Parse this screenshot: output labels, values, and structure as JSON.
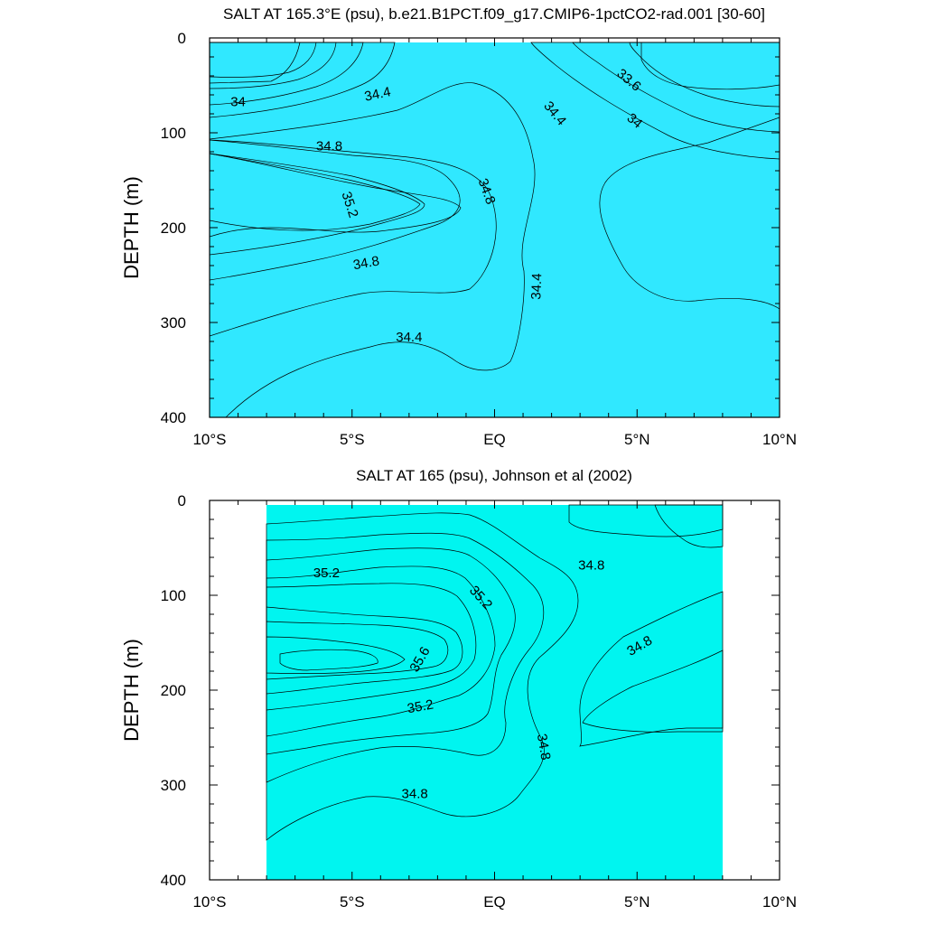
{
  "chart_data": [
    {
      "type": "contour",
      "title": "SALT AT 165.3°E (psu), b.e21.B1PCT.f09_g17.CMIP6-1pctCO2-rad.001 [30-60]",
      "ylabel": "DEPTH (m)",
      "xlim": [
        -10,
        10
      ],
      "ylim": [
        400,
        0
      ],
      "x_ticks": [
        {
          "v": -10,
          "label": "10°S"
        },
        {
          "v": -5,
          "label": "5°S"
        },
        {
          "v": 0,
          "label": "EQ"
        },
        {
          "v": 5,
          "label": "5°N"
        },
        {
          "v": 10,
          "label": "10°N"
        }
      ],
      "y_ticks": [
        {
          "v": 0,
          "label": "0"
        },
        {
          "v": 100,
          "label": "100"
        },
        {
          "v": 200,
          "label": "200"
        },
        {
          "v": 300,
          "label": "300"
        },
        {
          "v": 400,
          "label": "400"
        }
      ],
      "data_extent": {
        "lon": [
          -10,
          10
        ],
        "depth": [
          5,
          400
        ]
      },
      "levels": [
        {
          "min": 33.4,
          "color": "#1e64ff"
        },
        {
          "min": 33.6,
          "color": "#0096ff"
        },
        {
          "min": 33.8,
          "color": "#00b4ff"
        },
        {
          "min": 34.0,
          "color": "#00d2ff"
        },
        {
          "min": 34.2,
          "color": "#30e8ff"
        },
        {
          "min": 34.4,
          "color": "#00f5f0"
        },
        {
          "min": 34.6,
          "color": "#00f5c0"
        },
        {
          "min": 34.8,
          "color": "#00f59a"
        },
        {
          "min": 35.0,
          "color": "#00f05a"
        },
        {
          "min": 35.2,
          "color": "#00ff40"
        }
      ],
      "low_color": "#0000ff",
      "contour_labels": [
        {
          "lon": -9.0,
          "depth": 68,
          "text": "34",
          "angle": 0
        },
        {
          "lon": -4.1,
          "depth": 60,
          "text": "34.4",
          "angle": -12
        },
        {
          "lon": -5.8,
          "depth": 115,
          "text": "34.8",
          "angle": 0
        },
        {
          "lon": -5.1,
          "depth": 176,
          "text": "35.2",
          "angle": 72
        },
        {
          "lon": -4.5,
          "depth": 238,
          "text": "34.8",
          "angle": -10
        },
        {
          "lon": -3.0,
          "depth": 316,
          "text": "34.4",
          "angle": 0
        },
        {
          "lon": -0.3,
          "depth": 162,
          "text": "34.8",
          "angle": 70
        },
        {
          "lon": 2.1,
          "depth": 80,
          "text": "34.4",
          "angle": 50
        },
        {
          "lon": 1.5,
          "depth": 262,
          "text": "34.4",
          "angle": -88
        },
        {
          "lon": 4.7,
          "depth": 45,
          "text": "33.6",
          "angle": 40
        },
        {
          "lon": 4.9,
          "depth": 88,
          "text": "34",
          "angle": 40
        }
      ]
    },
    {
      "type": "contour",
      "title": "SALT AT 165 (psu), Johnson et al (2002)",
      "ylabel": "DEPTH (m)",
      "xlim": [
        -10,
        10
      ],
      "ylim": [
        400,
        0
      ],
      "x_ticks": [
        {
          "v": -10,
          "label": "10°S"
        },
        {
          "v": -5,
          "label": "5°S"
        },
        {
          "v": 0,
          "label": "EQ"
        },
        {
          "v": 5,
          "label": "5°N"
        },
        {
          "v": 10,
          "label": "10°N"
        }
      ],
      "y_ticks": [
        {
          "v": 0,
          "label": "0"
        },
        {
          "v": 100,
          "label": "100"
        },
        {
          "v": 200,
          "label": "200"
        },
        {
          "v": 300,
          "label": "300"
        },
        {
          "v": 400,
          "label": "400"
        }
      ],
      "data_extent": {
        "lon": [
          -8,
          8
        ],
        "depth": [
          5,
          400
        ]
      },
      "levels": [
        {
          "min": 34.0,
          "color": "#00d2ff"
        },
        {
          "min": 34.2,
          "color": "#30e8ff"
        },
        {
          "min": 34.4,
          "color": "#00f5f0"
        },
        {
          "min": 34.6,
          "color": "#00f5c0"
        },
        {
          "min": 34.8,
          "color": "#00f59a"
        },
        {
          "min": 35.0,
          "color": "#00f05a"
        },
        {
          "min": 35.2,
          "color": "#00ff40"
        },
        {
          "min": 35.4,
          "color": "#96ff00"
        },
        {
          "min": 35.6,
          "color": "#ffff00"
        },
        {
          "min": 35.8,
          "color": "#ffe020"
        }
      ],
      "low_color": "#00b4ff",
      "contour_labels": [
        {
          "lon": -5.9,
          "depth": 77,
          "text": "35.2",
          "angle": 0
        },
        {
          "lon": -0.5,
          "depth": 103,
          "text": "35.2",
          "angle": 48
        },
        {
          "lon": 3.4,
          "depth": 69,
          "text": "34.8",
          "angle": 0
        },
        {
          "lon": -2.6,
          "depth": 168,
          "text": "35.6",
          "angle": -60
        },
        {
          "lon": -2.6,
          "depth": 218,
          "text": "35.2",
          "angle": -10
        },
        {
          "lon": 5.1,
          "depth": 154,
          "text": "34.8",
          "angle": -30
        },
        {
          "lon": 1.7,
          "depth": 260,
          "text": "34.8",
          "angle": 80
        },
        {
          "lon": -2.8,
          "depth": 310,
          "text": "34.8",
          "angle": 0
        }
      ]
    }
  ]
}
